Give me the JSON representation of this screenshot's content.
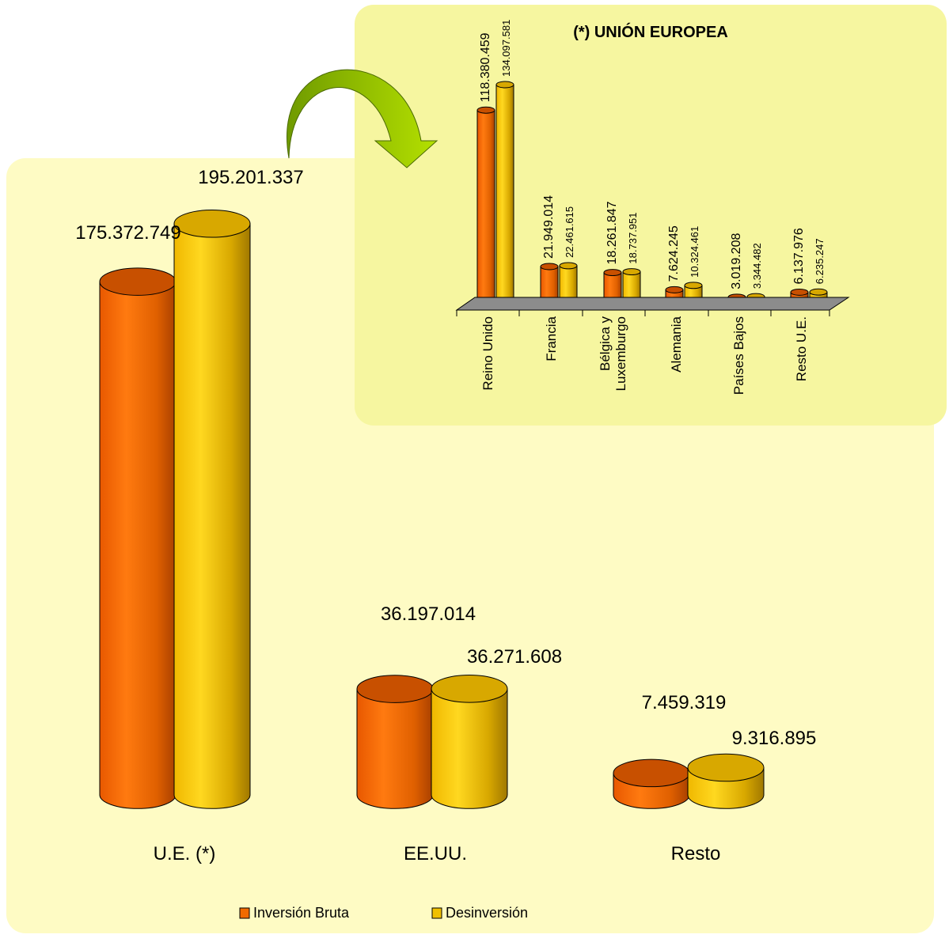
{
  "chart_data": [
    {
      "type": "bar",
      "categories": [
        "U.E. (*)",
        "EE.UU.",
        "Resto"
      ],
      "series": [
        {
          "name": "Inversión Bruta",
          "values": [
            175372749,
            36197014,
            7459319
          ]
        },
        {
          "name": "Desinversión",
          "values": [
            195201337,
            36271608,
            9316895
          ]
        }
      ],
      "value_labels": [
        [
          "175.372.749",
          "36.197.014",
          "7.459.319"
        ],
        [
          "195.201.337",
          "36.271.608",
          "9.316.895"
        ]
      ],
      "legend": "bottom",
      "grid": false,
      "colors": {
        "inv": "#f06a00",
        "des": "#f0c000",
        "panel": "#fefbc4"
      }
    },
    {
      "type": "bar",
      "title": "(*) UNIÓN EUROPEA",
      "categories": [
        "Reino Unido",
        "Francia",
        "Bélgica y Luxemburgo",
        "Alemania",
        "Países Bajos",
        "Resto U.E."
      ],
      "series": [
        {
          "name": "Inversión Bruta",
          "values": [
            118380459,
            21949014,
            18261847,
            7624245,
            3019208,
            6137976
          ]
        },
        {
          "name": "Desinversión",
          "values": [
            134097581,
            22461615,
            18737951,
            10324461,
            3344482,
            6235247
          ]
        }
      ],
      "value_labels": [
        [
          "118.380.459",
          "21.949.014",
          "18.261.847",
          "7.624.245",
          "3.019.208",
          "6.137.976"
        ],
        [
          "134.097.581",
          "22.461.615",
          "18.737.951",
          "10.324.461",
          "3.344.482",
          "6.235.247"
        ]
      ],
      "grid": false,
      "colors": {
        "panel": "#f6f6a0",
        "floor": "#8c8c8c",
        "arrow": "#8ab800"
      }
    }
  ]
}
